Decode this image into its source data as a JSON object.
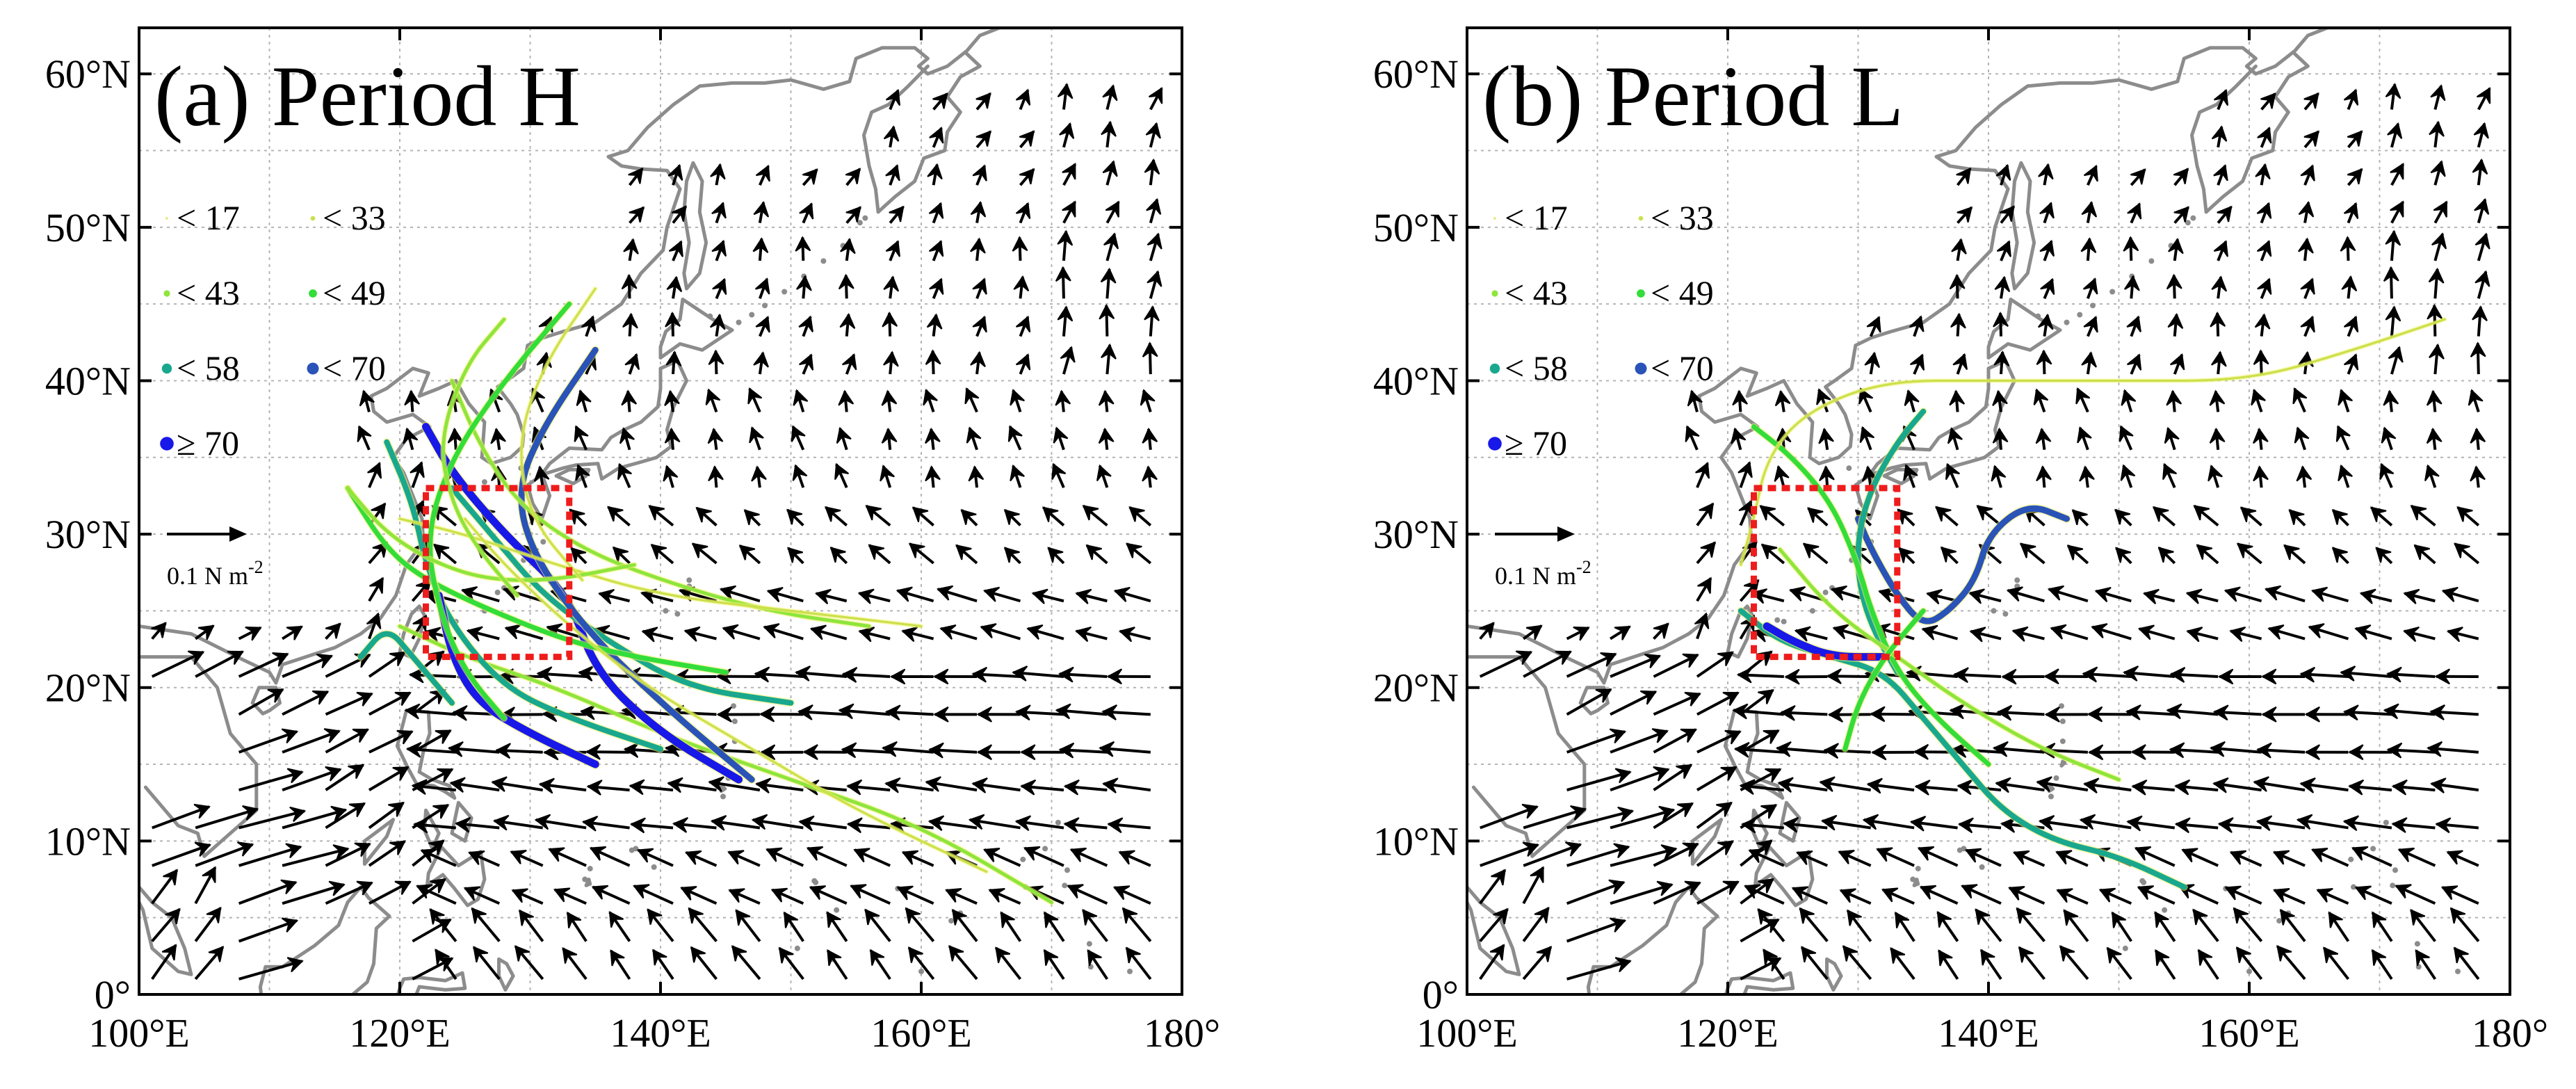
{
  "panels": [
    {
      "id": "a",
      "label": "(a) Period H",
      "boxed_region": {
        "lon": [
          122,
          133
        ],
        "lat": [
          22,
          33
        ]
      },
      "tracks": [
        {
          "points": [
            [
              170,
              6
            ],
            [
              160,
              11
            ],
            [
              150,
              14
            ],
            [
              140,
              17
            ],
            [
              132,
              20
            ],
            [
              125,
              22
            ],
            [
              120,
              24
            ]
          ],
          "category": "<43"
        },
        {
          "points": [
            [
              146,
              14
            ],
            [
              140,
              17
            ],
            [
              135,
              21
            ],
            [
              133,
              26
            ],
            [
              128,
              30
            ],
            [
              124,
              34
            ],
            [
              122,
              37
            ]
          ],
          "category": ">=70"
        },
        {
          "points": [
            [
              150,
              19
            ],
            [
              142,
              20
            ],
            [
              136,
              23
            ],
            [
              131,
              26
            ],
            [
              127,
              30
            ],
            [
              124,
              33
            ]
          ],
          "category": "<58"
        },
        {
          "points": [
            [
              147,
              14
            ],
            [
              140,
              19
            ],
            [
              134,
              24
            ],
            [
              130,
              29
            ],
            [
              129,
              33
            ],
            [
              131,
              37
            ],
            [
              135,
              42
            ]
          ],
          "category": "<70"
        },
        {
          "points": [
            [
              145,
              21
            ],
            [
              138,
              22
            ],
            [
              133,
              23
            ],
            [
              127,
              25
            ],
            [
              122,
              27
            ],
            [
              119,
              29
            ],
            [
              116,
              33
            ]
          ],
          "category": "<49"
        },
        {
          "points": [
            [
              140,
              16
            ],
            [
              133,
              18
            ],
            [
              128,
              20
            ],
            [
              124,
              24
            ],
            [
              122,
              28
            ],
            [
              121,
              32
            ],
            [
              119,
              36
            ]
          ],
          "category": "<58"
        },
        {
          "points": [
            [
              156,
              24
            ],
            [
              148,
              25
            ],
            [
              140,
              27
            ],
            [
              134,
              29
            ],
            [
              129,
              32
            ],
            [
              126,
              36
            ],
            [
              124,
              40
            ]
          ],
          "category": "<43"
        },
        {
          "points": [
            [
              135,
              15
            ],
            [
              130,
              17
            ],
            [
              126,
              19
            ],
            [
              124,
              22
            ],
            [
              123,
              26
            ]
          ],
          "category": ">=70"
        },
        {
          "points": [
            [
              160,
              24
            ],
            [
              150,
              25
            ],
            [
              140,
              26
            ],
            [
              132,
              28
            ],
            [
              125,
              30
            ],
            [
              120,
              31
            ]
          ],
          "category": "<33"
        },
        {
          "points": [
            [
              128,
              18
            ],
            [
              125,
              21
            ],
            [
              123,
              25
            ],
            [
              122,
              30
            ],
            [
              124,
              35
            ],
            [
              128,
              40
            ],
            [
              133,
              45
            ]
          ],
          "category": "<49"
        },
        {
          "points": [
            [
              138,
              28
            ],
            [
              132,
              27
            ],
            [
              127,
              27
            ],
            [
              123,
              28
            ],
            [
              119,
              30
            ],
            [
              116,
              33
            ]
          ],
          "category": "<43"
        },
        {
          "points": [
            [
              134,
              27
            ],
            [
              130,
              31
            ],
            [
              129,
              36
            ],
            [
              131,
              41
            ],
            [
              135,
              46
            ]
          ],
          "category": "<33"
        },
        {
          "points": [
            [
              124,
              19
            ],
            [
              121,
              22
            ],
            [
              119,
              24
            ],
            [
              117,
              22
            ]
          ],
          "category": "<58"
        },
        {
          "points": [
            [
              129,
              26
            ],
            [
              126,
              29
            ],
            [
              124,
              32
            ],
            [
              123,
              36
            ],
            [
              125,
              41
            ],
            [
              128,
              44
            ]
          ],
          "category": "<43"
        },
        {
          "points": [
            [
              165,
              8
            ],
            [
              155,
              12
            ],
            [
              147,
              16
            ],
            [
              139,
              20
            ],
            [
              133,
              24
            ],
            [
              128,
              28
            ],
            [
              125,
              31
            ]
          ],
          "category": "<33"
        }
      ]
    },
    {
      "id": "b",
      "label": "(b) Period L",
      "boxed_region": {
        "lon": [
          122,
          133
        ],
        "lat": [
          22,
          33
        ]
      },
      "tracks": [
        {
          "points": [
            [
              155,
              7
            ],
            [
              150,
              9
            ],
            [
              145,
              10
            ],
            [
              141,
              12
            ],
            [
              138,
              15
            ],
            [
              135,
              18
            ],
            [
              132,
              21
            ],
            [
              128,
              22
            ],
            [
              124,
              23
            ],
            [
              121,
              25
            ]
          ],
          "category": "<58"
        },
        {
          "points": [
            [
              146,
              31
            ],
            [
              143,
              32
            ],
            [
              140,
              30
            ],
            [
              139,
              27
            ],
            [
              137,
              25
            ],
            [
              135,
              24
            ],
            [
              133,
              26
            ],
            [
              131,
              29
            ],
            [
              130,
              31
            ]
          ],
          "category": "<70"
        },
        {
          "points": [
            [
              133,
              21
            ],
            [
              131,
              24
            ],
            [
              130,
              27
            ],
            [
              130,
              30
            ],
            [
              131,
              33
            ],
            [
              133,
              36
            ],
            [
              135,
              38
            ]
          ],
          "category": "<58"
        },
        {
          "points": [
            [
              132,
              22
            ],
            [
              128,
              22
            ],
            [
              125,
              23
            ],
            [
              123,
              24
            ]
          ],
          "category": ">=70"
        },
        {
          "points": [
            [
              140,
              15
            ],
            [
              136,
              18
            ],
            [
              133,
              21
            ],
            [
              131,
              25
            ],
            [
              130,
              28
            ],
            [
              128,
              32
            ],
            [
              125,
              35
            ],
            [
              122,
              37
            ]
          ],
          "category": "<49"
        },
        {
          "points": [
            [
              175,
              44
            ],
            [
              168,
              42
            ],
            [
              160,
              40
            ],
            [
              150,
              40
            ],
            [
              140,
              40
            ],
            [
              132,
              40
            ],
            [
              126,
              38
            ],
            [
              123,
              35
            ],
            [
              122,
              31
            ],
            [
              121,
              28
            ]
          ],
          "category": "<33"
        },
        {
          "points": [
            [
              150,
              14
            ],
            [
              144,
              16
            ],
            [
              138,
              19
            ],
            [
              133,
              22
            ],
            [
              128,
              25
            ],
            [
              124,
              29
            ]
          ],
          "category": "<43"
        },
        {
          "points": [
            [
              135,
              25
            ],
            [
              132,
              22
            ],
            [
              130,
              19
            ],
            [
              129,
              16
            ]
          ],
          "category": "<49"
        }
      ]
    }
  ],
  "legend": [
    {
      "label": "< 17",
      "color": "#e8ec86"
    },
    {
      "label": "< 33",
      "color": "#c9e04a"
    },
    {
      "label": "< 43",
      "color": "#8ee53c"
    },
    {
      "label": "< 49",
      "color": "#33dd3a"
    },
    {
      "label": "< 58",
      "color": "#19a88e"
    },
    {
      "label": "< 70",
      "color": "#2a53b8"
    },
    {
      "label": "≥ 70",
      "color": "#1818e8"
    }
  ],
  "category_colors": {
    "<17": "#e8ec86",
    "<33": "#c9e04a",
    "<43": "#8ee53c",
    "<49": "#33dd3a",
    "<58": "#19a88e",
    "<70": "#2a53b8",
    ">=70": "#1818e8"
  },
  "reference_vector": {
    "label": "0.1 N m",
    "exponent": "-2",
    "magnitude": 0.1
  },
  "axes": {
    "lon_range": [
      100,
      180
    ],
    "lat_range": [
      0,
      63
    ],
    "x_ticks": [
      {
        "value": 100,
        "label": "100°E"
      },
      {
        "value": 120,
        "label": "120°E"
      },
      {
        "value": 140,
        "label": "140°E"
      },
      {
        "value": 160,
        "label": "160°E"
      },
      {
        "value": 180,
        "label": "180°"
      }
    ],
    "y_ticks": [
      {
        "value": 0,
        "label": "0°"
      },
      {
        "value": 10,
        "label": "10°N"
      },
      {
        "value": 20,
        "label": "20°N"
      },
      {
        "value": 30,
        "label": "30°N"
      },
      {
        "value": 40,
        "label": "40°N"
      },
      {
        "value": 50,
        "label": "50°N"
      },
      {
        "value": 60,
        "label": "60°N"
      }
    ],
    "grid": "dotted"
  },
  "colors": {
    "coast": "#8c8c8c",
    "box": "#ee1c1c",
    "vector": "#000000",
    "grid": "#b4b4b4"
  }
}
